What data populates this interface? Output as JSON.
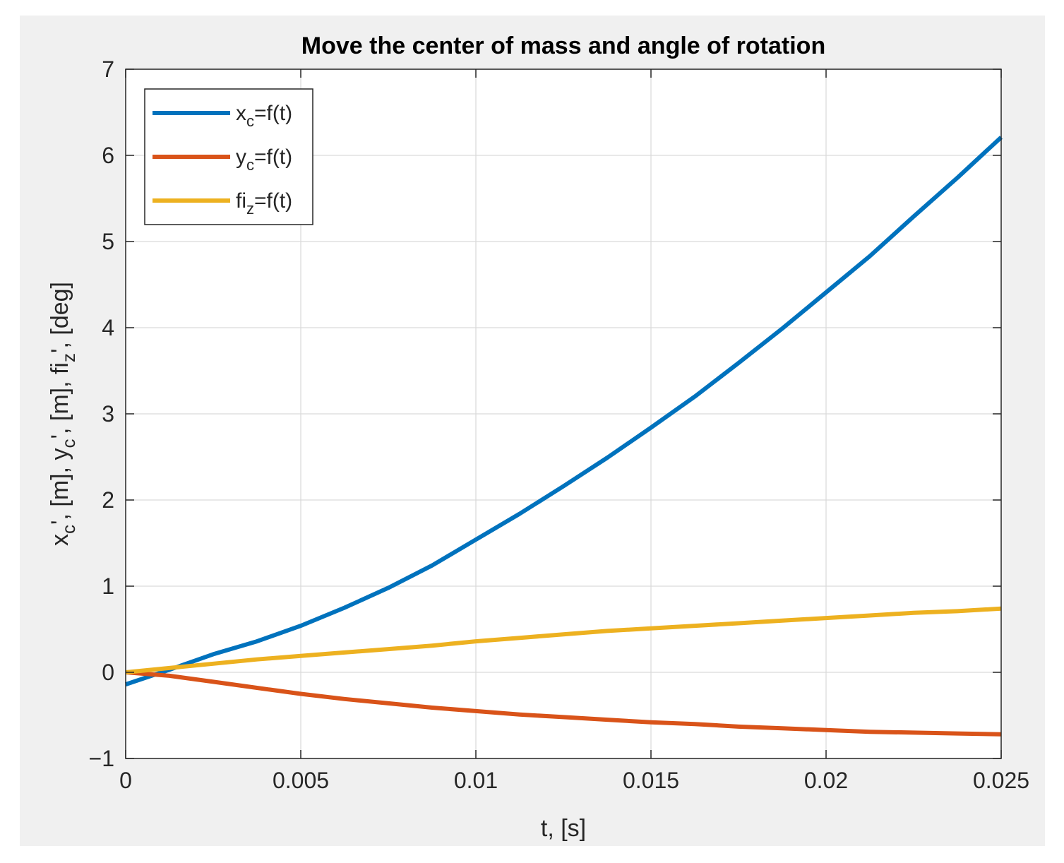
{
  "chart_data": {
    "type": "line",
    "title": "Move the center of mass and angle of rotation",
    "xlabel": {
      "base": "t, [s]"
    },
    "ylabel": {
      "parts": [
        {
          "text": "x",
          "sub": "c"
        },
        {
          "text": "', [m], y",
          "sub": "c"
        },
        {
          "text": "', [m], fi",
          "sub": "z"
        },
        {
          "text": "', [deg]",
          "sub": ""
        }
      ]
    },
    "xlim": [
      0,
      0.025
    ],
    "ylim": [
      -1,
      7
    ],
    "xticks": [
      {
        "value": 0,
        "label": "0"
      },
      {
        "value": 0.005,
        "label": "0.005"
      },
      {
        "value": 0.01,
        "label": "0.01"
      },
      {
        "value": 0.015,
        "label": "0.015"
      },
      {
        "value": 0.02,
        "label": "0.02"
      },
      {
        "value": 0.025,
        "label": "0.025"
      }
    ],
    "yticks": [
      {
        "value": -1,
        "label": "−1"
      },
      {
        "value": 0,
        "label": "0"
      },
      {
        "value": 1,
        "label": "1"
      },
      {
        "value": 2,
        "label": "2"
      },
      {
        "value": 3,
        "label": "3"
      },
      {
        "value": 4,
        "label": "4"
      },
      {
        "value": 5,
        "label": "5"
      },
      {
        "value": 6,
        "label": "6"
      },
      {
        "value": 7,
        "label": "7"
      }
    ],
    "grid": true,
    "legend_position": "top-left",
    "series": [
      {
        "name": "x_c=f(t)",
        "legend": {
          "base": "x",
          "sub": "c",
          "rest": "=f(t)"
        },
        "color": "#0072bd",
        "x": [
          0,
          0.00125,
          0.0025,
          0.00375,
          0.005,
          0.00625,
          0.0075,
          0.00875,
          0.01,
          0.01125,
          0.0125,
          0.01375,
          0.015,
          0.01625,
          0.0175,
          0.01875,
          0.02,
          0.02125,
          0.0225,
          0.02375,
          0.025
        ],
        "y": [
          -0.14,
          0.03,
          0.21,
          0.36,
          0.54,
          0.75,
          0.98,
          1.24,
          1.54,
          1.84,
          2.16,
          2.49,
          2.84,
          3.2,
          3.59,
          3.99,
          4.41,
          4.83,
          5.29,
          5.74,
          6.21
        ]
      },
      {
        "name": "y_c=f(t)",
        "legend": {
          "base": "y",
          "sub": "c",
          "rest": "=f(t)"
        },
        "color": "#d95319",
        "x": [
          0,
          0.00125,
          0.0025,
          0.00375,
          0.005,
          0.00625,
          0.0075,
          0.00875,
          0.01,
          0.01125,
          0.0125,
          0.01375,
          0.015,
          0.01625,
          0.0175,
          0.01875,
          0.02,
          0.02125,
          0.0225,
          0.02375,
          0.025
        ],
        "y": [
          0,
          -0.04,
          -0.11,
          -0.18,
          -0.25,
          -0.31,
          -0.36,
          -0.41,
          -0.45,
          -0.49,
          -0.52,
          -0.55,
          -0.58,
          -0.6,
          -0.63,
          -0.65,
          -0.67,
          -0.69,
          -0.7,
          -0.71,
          -0.72
        ]
      },
      {
        "name": "fi_z=f(t)",
        "legend": {
          "base": "fi",
          "sub": "z",
          "rest": "=f(t)"
        },
        "color": "#edb120",
        "x": [
          0,
          0.00125,
          0.0025,
          0.00375,
          0.005,
          0.00625,
          0.0075,
          0.00875,
          0.01,
          0.01125,
          0.0125,
          0.01375,
          0.015,
          0.01625,
          0.0175,
          0.01875,
          0.02,
          0.02125,
          0.0225,
          0.02375,
          0.025
        ],
        "y": [
          0,
          0.05,
          0.1,
          0.15,
          0.19,
          0.23,
          0.27,
          0.31,
          0.36,
          0.4,
          0.44,
          0.48,
          0.51,
          0.54,
          0.57,
          0.6,
          0.63,
          0.66,
          0.69,
          0.71,
          0.74
        ]
      }
    ]
  }
}
